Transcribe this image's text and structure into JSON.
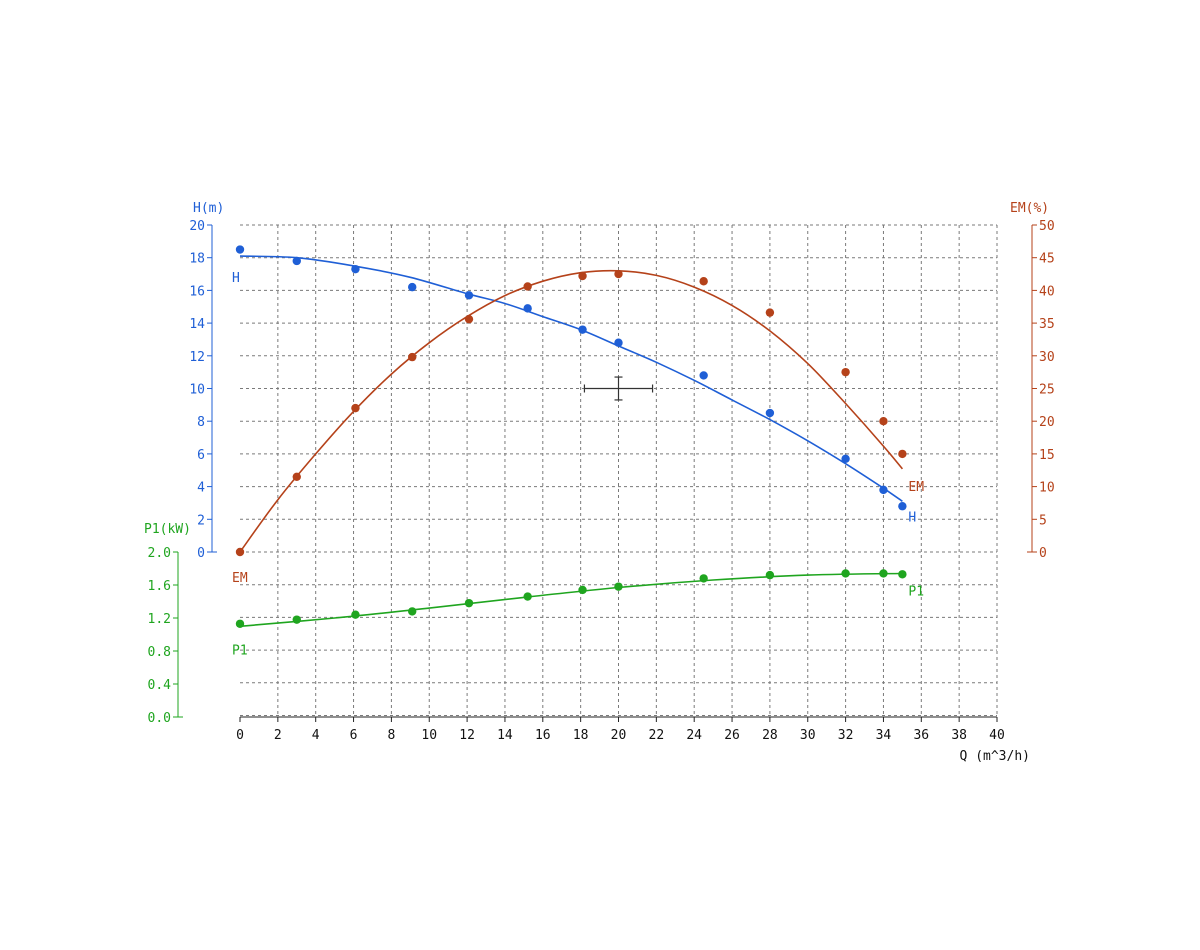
{
  "chart_data": {
    "type": "line",
    "x_axis": {
      "label": "Q (m^3/h)",
      "range": [
        0,
        40
      ],
      "ticks": [
        0,
        2,
        4,
        6,
        8,
        10,
        12,
        14,
        16,
        18,
        20,
        22,
        24,
        26,
        28,
        30,
        32,
        34,
        36,
        38,
        40
      ]
    },
    "y_axes": {
      "H": {
        "label": "H(m)",
        "range": [
          0,
          20
        ],
        "ticks": [
          "0",
          "2",
          "4",
          "6",
          "8",
          "10",
          "12",
          "14",
          "16",
          "18",
          "20"
        ],
        "color": "#1f5fd6"
      },
      "EM": {
        "label": "EM(%)",
        "range": [
          0,
          50
        ],
        "ticks": [
          "0",
          "5",
          "10",
          "15",
          "20",
          "25",
          "30",
          "35",
          "40",
          "45",
          "50"
        ],
        "color": "#b5421a"
      },
      "P1": {
        "label": "P1(kW)",
        "range": [
          0,
          2
        ],
        "ticks": [
          "0.0",
          "0.4",
          "0.8",
          "1.2",
          "1.6",
          "2.0"
        ],
        "color": "#1fa51f"
      }
    },
    "grid": true,
    "series": [
      {
        "name": "H",
        "axis": "H",
        "color": "#1f5fd6",
        "points": [
          [
            0,
            18.5
          ],
          [
            3,
            17.8
          ],
          [
            6.1,
            17.3
          ],
          [
            9.1,
            16.2
          ],
          [
            12.1,
            15.7
          ],
          [
            15.2,
            14.9
          ],
          [
            18.1,
            13.6
          ],
          [
            20,
            12.8
          ],
          [
            24.5,
            10.8
          ],
          [
            28,
            8.5
          ],
          [
            32,
            5.7
          ],
          [
            34,
            3.8
          ],
          [
            35,
            2.8
          ]
        ],
        "curve": [
          [
            0,
            18.1
          ],
          [
            3,
            18.0
          ],
          [
            6,
            17.5
          ],
          [
            9,
            16.8
          ],
          [
            12,
            15.8
          ],
          [
            14,
            15.2
          ],
          [
            16,
            14.4
          ],
          [
            18,
            13.6
          ],
          [
            20,
            12.6
          ],
          [
            22,
            11.6
          ],
          [
            24,
            10.5
          ],
          [
            26,
            9.3
          ],
          [
            28,
            8.1
          ],
          [
            30,
            6.8
          ],
          [
            32,
            5.4
          ],
          [
            34,
            3.9
          ],
          [
            35,
            3.1
          ]
        ],
        "curve_label_start": "H",
        "curve_label_end": "H"
      },
      {
        "name": "EM",
        "axis": "EM",
        "color": "#b5421a",
        "points": [
          [
            0,
            0
          ],
          [
            3,
            11.5
          ],
          [
            6.1,
            22
          ],
          [
            9.1,
            29.8
          ],
          [
            12.1,
            35.6
          ],
          [
            15.2,
            40.6
          ],
          [
            18.1,
            42.2
          ],
          [
            20,
            42.5
          ],
          [
            24.5,
            41.4
          ],
          [
            28,
            36.6
          ],
          [
            32,
            27.5
          ],
          [
            34,
            20
          ],
          [
            35,
            15
          ]
        ],
        "curve": [
          [
            0,
            0
          ],
          [
            2,
            8
          ],
          [
            4,
            15
          ],
          [
            6,
            21.5
          ],
          [
            8,
            27.2
          ],
          [
            10,
            32
          ],
          [
            12,
            36
          ],
          [
            14,
            39.2
          ],
          [
            16,
            41.4
          ],
          [
            18,
            42.7
          ],
          [
            20,
            43
          ],
          [
            22,
            42.3
          ],
          [
            24,
            40.5
          ],
          [
            26,
            37.7
          ],
          [
            28,
            33.8
          ],
          [
            30,
            28.8
          ],
          [
            32,
            22.7
          ],
          [
            34,
            16.2
          ],
          [
            35,
            12.7
          ]
        ],
        "curve_label_start": "EM",
        "curve_label_end": "EM"
      },
      {
        "name": "P1",
        "axis": "P1",
        "color": "#1fa51f",
        "points": [
          [
            0,
            1.13
          ],
          [
            3,
            1.18
          ],
          [
            6.1,
            1.24
          ],
          [
            9.1,
            1.28
          ],
          [
            12.1,
            1.38
          ],
          [
            15.2,
            1.46
          ],
          [
            18.1,
            1.54
          ],
          [
            20,
            1.58
          ],
          [
            24.5,
            1.68
          ],
          [
            28,
            1.72
          ],
          [
            32,
            1.74
          ],
          [
            34,
            1.74
          ],
          [
            35,
            1.73
          ]
        ],
        "curve": [
          [
            0,
            1.1
          ],
          [
            5,
            1.2
          ],
          [
            10,
            1.32
          ],
          [
            15,
            1.45
          ],
          [
            20,
            1.57
          ],
          [
            25,
            1.66
          ],
          [
            30,
            1.72
          ],
          [
            35,
            1.74
          ]
        ],
        "curve_label_start": "P1",
        "curve_label_end": "P1"
      }
    ],
    "operating_point": {
      "q": 20,
      "h": 10,
      "q_range": [
        18.2,
        21.8
      ],
      "h_range": [
        9.3,
        10.7
      ]
    }
  }
}
